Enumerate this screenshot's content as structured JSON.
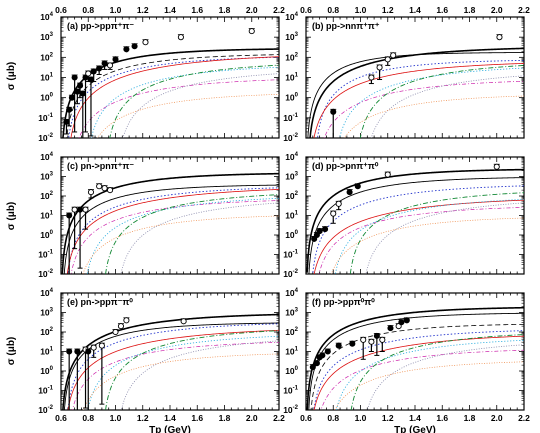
{
  "chart_data": [
    {
      "type": "line",
      "panel": 0,
      "title": "(a) pp->ppπ⁺π⁻",
      "xlabel": "",
      "ylabel": "σ (μb)",
      "xlim": [
        0.6,
        2.2
      ],
      "ylim_exp": [
        -2,
        4
      ],
      "yscale": "log",
      "x_ticks_top": [
        "0.6",
        "0.8",
        "1.0",
        "1.2",
        "1.4",
        "1.6",
        "1.8",
        "2.0",
        "2.2"
      ],
      "y_ticks_base": "10",
      "y_ticks_exp": [
        "-2",
        "-1",
        "0",
        "1",
        "2",
        "3",
        "4"
      ],
      "curves": [
        {
          "style": "black-thick",
          "threshold": 0.599,
          "plateau": 2.45,
          "k": 2.2
        },
        {
          "style": "black-dash",
          "threshold": 0.62,
          "plateau": 2.2,
          "k": 1.9
        },
        {
          "style": "blue-dot",
          "threshold": 0.63,
          "plateau": 2.1,
          "k": 1.7
        },
        {
          "style": "red-solid",
          "threshold": 0.64,
          "plateau": 2.25,
          "k": 1.2
        },
        {
          "style": "magenta-dashdot",
          "threshold": 0.66,
          "plateau": 1.05,
          "k": 1.4
        },
        {
          "style": "cyan-dot",
          "threshold": 0.78,
          "plateau": 1.7,
          "k": 1.4
        },
        {
          "style": "green-dashdot",
          "threshold": 0.92,
          "plateau": 1.85,
          "k": 1.4
        },
        {
          "style": "gray-dot",
          "threshold": 1.0,
          "plateau": 1.5,
          "k": 1.3
        },
        {
          "style": "orange-dot",
          "threshold": 0.75,
          "plateau": 0.3,
          "k": 1.6
        }
      ],
      "points": [
        {
          "x": 0.64,
          "y": -1.2,
          "open": false,
          "eneg": 0.6
        },
        {
          "x": 0.66,
          "y": -0.6,
          "open": false,
          "eneg": 0.8
        },
        {
          "x": 0.68,
          "y": 0.0,
          "open": false,
          "eneg": 0.0
        },
        {
          "x": 0.7,
          "y": 1.0,
          "open": false,
          "eneg": 2.7
        },
        {
          "x": 0.72,
          "y": 0.3,
          "open": false,
          "eneg": 0.6
        },
        {
          "x": 0.74,
          "y": 0.6,
          "open": false,
          "eneg": 0.6
        },
        {
          "x": 0.76,
          "y": 0.2,
          "open": false,
          "eneg": 2.2
        },
        {
          "x": 0.78,
          "y": 1.0,
          "open": false,
          "eneg": 2.7
        },
        {
          "x": 0.8,
          "y": 1.2,
          "open": true,
          "eneg": 0.4
        },
        {
          "x": 0.82,
          "y": 0.9,
          "open": false,
          "eneg": 2.8
        },
        {
          "x": 0.84,
          "y": 1.3,
          "open": false,
          "eneg": 0.5
        },
        {
          "x": 0.88,
          "y": 1.45,
          "open": false,
          "eneg": 0.3
        },
        {
          "x": 0.92,
          "y": 1.7,
          "open": false,
          "eneg": 0.3
        },
        {
          "x": 0.96,
          "y": 1.6,
          "open": true,
          "eneg": 0.2
        },
        {
          "x": 1.0,
          "y": 1.9,
          "open": false,
          "eneg": 0.0
        },
        {
          "x": 1.08,
          "y": 2.4,
          "open": false,
          "eneg": 0.0
        },
        {
          "x": 1.14,
          "y": 2.55,
          "open": false,
          "eneg": 0.0
        },
        {
          "x": 1.22,
          "y": 2.75,
          "open": true,
          "eneg": 0.0
        },
        {
          "x": 1.48,
          "y": 3.0,
          "open": true,
          "eneg": 0.0
        },
        {
          "x": 2.0,
          "y": 3.3,
          "open": true,
          "eneg": 0.0
        }
      ]
    },
    {
      "type": "line",
      "panel": 1,
      "title": "(b) pp->nnπ⁺π⁺",
      "xlabel": "",
      "ylabel": "",
      "xlim": [
        0.6,
        2.2
      ],
      "ylim_exp": [
        -2,
        4
      ],
      "yscale": "log",
      "x_ticks_top": [
        "0.6",
        "0.8",
        "1.0",
        "1.2",
        "1.4",
        "1.6",
        "1.8",
        "2.0",
        "2.2"
      ],
      "y_ticks_base": "10",
      "y_ticks_exp": [
        "-2",
        "-1",
        "0",
        "1",
        "2",
        "3",
        "4"
      ],
      "curves": [
        {
          "style": "black-thick",
          "threshold": 0.61,
          "plateau": 2.55,
          "k": 1.6
        },
        {
          "style": "black-thin",
          "threshold": 0.6,
          "plateau": 2.25,
          "k": 3.0
        },
        {
          "style": "blue-dot",
          "threshold": 0.66,
          "plateau": 1.9,
          "k": 2.1
        },
        {
          "style": "red-solid",
          "threshold": 0.62,
          "plateau": 1.85,
          "k": 1.4
        },
        {
          "style": "magenta-dashdot",
          "threshold": 0.66,
          "plateau": 0.95,
          "k": 1.5
        },
        {
          "style": "cyan-dot",
          "threshold": 0.8,
          "plateau": 1.7,
          "k": 1.3
        },
        {
          "style": "green-dashdot",
          "threshold": 0.96,
          "plateau": 1.85,
          "k": 1.4
        },
        {
          "style": "gray-dot",
          "threshold": 1.02,
          "plateau": 1.4,
          "k": 1.3
        },
        {
          "style": "orange-dot",
          "threshold": 0.76,
          "plateau": 0.2,
          "k": 1.7
        }
      ],
      "points": [
        {
          "x": 0.8,
          "y": -0.7,
          "open": false,
          "eneg": 1.3
        },
        {
          "x": 1.08,
          "y": 1.0,
          "open": true,
          "eneg": 0.3
        },
        {
          "x": 1.14,
          "y": 1.5,
          "open": true,
          "eneg": 0.6
        },
        {
          "x": 1.2,
          "y": 1.9,
          "open": true,
          "eneg": 0.3
        },
        {
          "x": 1.24,
          "y": 2.1,
          "open": true,
          "eneg": 0.0
        },
        {
          "x": 2.02,
          "y": 3.0,
          "open": true,
          "eneg": 0.0
        }
      ]
    },
    {
      "type": "line",
      "panel": 2,
      "title": "(c) pn->pnπ⁺π⁻",
      "xlabel": "",
      "ylabel": "σ (μb)",
      "xlim": [
        0.6,
        2.2
      ],
      "ylim_exp": [
        -2,
        4
      ],
      "yscale": "log",
      "x_ticks_top": [],
      "y_ticks_base": "10",
      "y_ticks_exp": [
        "-2",
        "-1",
        "0",
        "1",
        "2",
        "3",
        "4"
      ],
      "curves": [
        {
          "style": "black-thick",
          "threshold": 0.6,
          "plateau": 3.2,
          "k": 2.0
        },
        {
          "style": "black-thin",
          "threshold": 0.61,
          "plateau": 2.6,
          "k": 2.2
        },
        {
          "style": "blue-dot",
          "threshold": 0.63,
          "plateau": 2.55,
          "k": 1.5
        },
        {
          "style": "red-solid",
          "threshold": 0.62,
          "plateau": 2.55,
          "k": 1.2
        },
        {
          "style": "magenta-dashdot",
          "threshold": 0.64,
          "plateau": 1.9,
          "k": 1.5
        },
        {
          "style": "cyan-dot",
          "threshold": 0.76,
          "plateau": 2.1,
          "k": 1.3
        },
        {
          "style": "green-dashdot",
          "threshold": 0.9,
          "plateau": 2.3,
          "k": 1.4
        },
        {
          "style": "gray-dot",
          "threshold": 1.0,
          "plateau": 2.0,
          "k": 1.2
        },
        {
          "style": "orange-dot",
          "threshold": 0.7,
          "plateau": 1.1,
          "k": 1.6
        }
      ],
      "points": [
        {
          "x": 0.66,
          "y": 1.0,
          "open": false,
          "eneg": 3.0
        },
        {
          "x": 0.7,
          "y": 1.3,
          "open": true,
          "eneg": 2.0
        },
        {
          "x": 0.74,
          "y": 1.3,
          "open": false,
          "eneg": 3.0
        },
        {
          "x": 0.78,
          "y": 1.3,
          "open": true,
          "eneg": 1.0
        },
        {
          "x": 0.82,
          "y": 2.2,
          "open": true,
          "eneg": 0.3
        },
        {
          "x": 0.88,
          "y": 2.5,
          "open": true,
          "eneg": 0.0
        },
        {
          "x": 0.92,
          "y": 2.4,
          "open": true,
          "eneg": 0.0
        },
        {
          "x": 0.96,
          "y": 2.3,
          "open": true,
          "eneg": 0.0
        }
      ]
    },
    {
      "type": "line",
      "panel": 3,
      "title": "(d) pp->pnπ⁺π⁰",
      "xlabel": "",
      "ylabel": "",
      "xlim": [
        0.6,
        2.2
      ],
      "ylim_exp": [
        -2,
        4
      ],
      "yscale": "log",
      "x_ticks_top": [],
      "y_ticks_base": "10",
      "y_ticks_exp": [
        "-2",
        "-1",
        "0",
        "1",
        "2",
        "3",
        "4"
      ],
      "curves": [
        {
          "style": "black-thick",
          "threshold": 0.6,
          "plateau": 3.4,
          "k": 2.1
        },
        {
          "style": "black-thin",
          "threshold": 0.61,
          "plateau": 3.0,
          "k": 2.0
        },
        {
          "style": "blue-dot",
          "threshold": 0.63,
          "plateau": 2.65,
          "k": 1.5
        },
        {
          "style": "red-solid",
          "threshold": 0.62,
          "plateau": 2.0,
          "k": 1.2
        },
        {
          "style": "magenta-dashdot",
          "threshold": 0.65,
          "plateau": 1.55,
          "k": 1.5
        },
        {
          "style": "cyan-dot",
          "threshold": 0.78,
          "plateau": 2.05,
          "k": 1.3
        },
        {
          "style": "green-dashdot",
          "threshold": 0.9,
          "plateau": 2.4,
          "k": 1.4
        },
        {
          "style": "gray-dot",
          "threshold": 1.0,
          "plateau": 2.0,
          "k": 1.2
        },
        {
          "style": "orange-dot",
          "threshold": 0.72,
          "plateau": 1.0,
          "k": 1.6
        }
      ],
      "points": [
        {
          "x": 0.66,
          "y": -0.2,
          "open": false,
          "eneg": 0.0
        },
        {
          "x": 0.68,
          "y": 0.0,
          "open": false,
          "eneg": 0.0
        },
        {
          "x": 0.7,
          "y": 0.2,
          "open": false,
          "eneg": 0.0
        },
        {
          "x": 0.74,
          "y": 0.3,
          "open": false,
          "eneg": 0.0
        },
        {
          "x": 0.8,
          "y": 1.1,
          "open": true,
          "eneg": 0.5
        },
        {
          "x": 0.84,
          "y": 1.6,
          "open": true,
          "eneg": 0.3
        },
        {
          "x": 0.92,
          "y": 2.2,
          "open": false,
          "eneg": 0.0
        },
        {
          "x": 0.98,
          "y": 2.5,
          "open": false,
          "eneg": 0.0
        },
        {
          "x": 1.2,
          "y": 3.1,
          "open": true,
          "eneg": 0.0
        },
        {
          "x": 2.0,
          "y": 3.5,
          "open": true,
          "eneg": 0.0
        }
      ]
    },
    {
      "type": "line",
      "panel": 4,
      "title": "(e) pn->ppπ⁻π⁰",
      "xlabel": "Tp (GeV)",
      "ylabel": "σ (μb)",
      "xlim": [
        0.6,
        2.2
      ],
      "ylim_exp": [
        -2,
        4
      ],
      "yscale": "log",
      "x_ticks_bottom": [
        "0.6",
        "0.8",
        "1.0",
        "1.2",
        "1.4",
        "1.6",
        "1.8",
        "2.0",
        "2.2"
      ],
      "y_ticks_base": "10",
      "y_ticks_exp": [
        "-2",
        "-1",
        "0",
        "1",
        "2",
        "3",
        "4"
      ],
      "curves": [
        {
          "style": "black-thick",
          "threshold": 0.6,
          "plateau": 3.0,
          "k": 1.6
        },
        {
          "style": "black-thin",
          "threshold": 0.61,
          "plateau": 2.5,
          "k": 2.2
        },
        {
          "style": "blue-dot",
          "threshold": 0.63,
          "plateau": 2.55,
          "k": 1.5
        },
        {
          "style": "red-solid",
          "threshold": 0.62,
          "plateau": 2.3,
          "k": 1.2
        },
        {
          "style": "magenta-dashdot",
          "threshold": 0.64,
          "plateau": 1.6,
          "k": 1.5
        },
        {
          "style": "cyan-dot",
          "threshold": 0.76,
          "plateau": 2.0,
          "k": 1.3
        },
        {
          "style": "green-dashdot",
          "threshold": 0.9,
          "plateau": 2.3,
          "k": 1.4
        },
        {
          "style": "gray-dot",
          "threshold": 1.0,
          "plateau": 1.9,
          "k": 1.2
        },
        {
          "style": "orange-dot",
          "threshold": 0.7,
          "plateau": 1.0,
          "k": 1.6
        }
      ],
      "points": [
        {
          "x": 0.66,
          "y": 1.0,
          "open": false,
          "eneg": 3.0
        },
        {
          "x": 0.72,
          "y": 1.0,
          "open": false,
          "eneg": 3.0
        },
        {
          "x": 0.78,
          "y": 1.1,
          "open": true,
          "eneg": 3.0
        },
        {
          "x": 0.8,
          "y": 1.0,
          "open": false,
          "eneg": 3.0
        },
        {
          "x": 0.84,
          "y": 1.2,
          "open": true,
          "eneg": 0.5
        },
        {
          "x": 0.9,
          "y": 1.3,
          "open": true,
          "eneg": 3.0
        },
        {
          "x": 1.0,
          "y": 2.0,
          "open": true,
          "eneg": 0.0
        },
        {
          "x": 1.04,
          "y": 2.3,
          "open": true,
          "eneg": 0.0
        },
        {
          "x": 1.08,
          "y": 2.6,
          "open": true,
          "eneg": 0.0
        },
        {
          "x": 1.5,
          "y": 2.55,
          "open": true,
          "eneg": 0.0
        }
      ]
    },
    {
      "type": "line",
      "panel": 5,
      "title": "(f) pp->ppπ⁰π⁰",
      "xlabel": "Tp (GeV)",
      "ylabel": "",
      "xlim": [
        0.6,
        2.2
      ],
      "ylim_exp": [
        -2,
        4
      ],
      "yscale": "log",
      "x_ticks_bottom": [
        "0.6",
        "0.8",
        "1.0",
        "1.2",
        "1.4",
        "1.6",
        "1.8",
        "2.0",
        "2.2"
      ],
      "y_ticks_base": "10",
      "y_ticks_exp": [
        "-2",
        "-1",
        "0",
        "1",
        "2",
        "3",
        "4"
      ],
      "curves": [
        {
          "style": "black-thick",
          "threshold": 0.6,
          "plateau": 3.3,
          "k": 2.0
        },
        {
          "style": "black-thin",
          "threshold": 0.61,
          "plateau": 3.0,
          "k": 2.2
        },
        {
          "style": "black-dash",
          "threshold": 0.62,
          "plateau": 2.45,
          "k": 2.0
        },
        {
          "style": "blue-dot",
          "threshold": 0.63,
          "plateau": 2.2,
          "k": 1.5
        },
        {
          "style": "red-solid",
          "threshold": 0.62,
          "plateau": 2.0,
          "k": 1.2
        },
        {
          "style": "magenta-dashdot",
          "threshold": 0.65,
          "plateau": 1.2,
          "k": 1.5
        },
        {
          "style": "cyan-dot",
          "threshold": 0.78,
          "plateau": 1.8,
          "k": 1.3
        },
        {
          "style": "green-dashdot",
          "threshold": 0.9,
          "plateau": 2.1,
          "k": 1.4
        },
        {
          "style": "gray-dot",
          "threshold": 1.0,
          "plateau": 1.7,
          "k": 1.2
        },
        {
          "style": "orange-dot",
          "threshold": 0.72,
          "plateau": 0.6,
          "k": 1.6
        }
      ],
      "points": [
        {
          "x": 0.65,
          "y": 0.2,
          "open": false,
          "eneg": 0.0
        },
        {
          "x": 0.68,
          "y": 0.4,
          "open": false,
          "eneg": 0.0
        },
        {
          "x": 0.7,
          "y": 0.7,
          "open": false,
          "eneg": 0.0
        },
        {
          "x": 0.72,
          "y": 0.8,
          "open": false,
          "eneg": 0.0
        },
        {
          "x": 0.76,
          "y": 1.0,
          "open": false,
          "eneg": 0.0
        },
        {
          "x": 0.84,
          "y": 1.3,
          "open": false,
          "eneg": 0.0
        },
        {
          "x": 0.94,
          "y": 1.4,
          "open": false,
          "eneg": 0.0
        },
        {
          "x": 1.02,
          "y": 1.6,
          "open": true,
          "eneg": 1.0
        },
        {
          "x": 1.08,
          "y": 1.5,
          "open": true,
          "eneg": 0.5
        },
        {
          "x": 1.12,
          "y": 1.8,
          "open": false,
          "eneg": 1.0
        },
        {
          "x": 1.16,
          "y": 1.6,
          "open": true,
          "eneg": 0.6
        },
        {
          "x": 1.22,
          "y": 2.2,
          "open": false,
          "eneg": 0.0
        },
        {
          "x": 1.28,
          "y": 2.3,
          "open": true,
          "eneg": 0.0
        },
        {
          "x": 1.3,
          "y": 2.5,
          "open": false,
          "eneg": 0.0
        },
        {
          "x": 1.34,
          "y": 2.6,
          "open": false,
          "eneg": 0.0
        }
      ]
    }
  ],
  "styles": {
    "black-thick": {
      "color": "#000000",
      "width": 1.6,
      "dash": ""
    },
    "black-thin": {
      "color": "#000000",
      "width": 0.9,
      "dash": ""
    },
    "black-dash": {
      "color": "#000000",
      "width": 0.8,
      "dash": "5,3"
    },
    "blue-dot": {
      "color": "#2233cc",
      "width": 0.9,
      "dash": "1.5,2"
    },
    "red-solid": {
      "color": "#dd1111",
      "width": 0.8,
      "dash": ""
    },
    "magenta-dashdot": {
      "color": "#cc22aa",
      "width": 0.7,
      "dash": "4,2,1,2"
    },
    "cyan-dot": {
      "color": "#22aadd",
      "width": 0.8,
      "dash": "1.2,1.8"
    },
    "green-dashdot": {
      "color": "#118833",
      "width": 0.9,
      "dash": "5,2,1,2"
    },
    "gray-dot": {
      "color": "#8888aa",
      "width": 0.8,
      "dash": "1,1.5"
    },
    "orange-dot": {
      "color": "#ee8844",
      "width": 0.7,
      "dash": "1,1.5"
    }
  }
}
